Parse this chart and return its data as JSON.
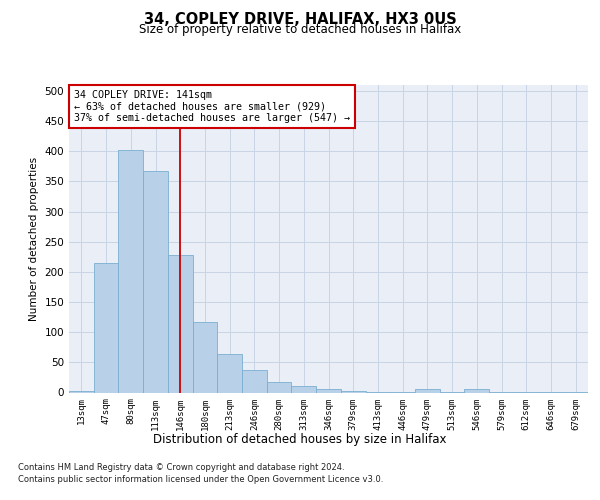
{
  "title1": "34, COPLEY DRIVE, HALIFAX, HX3 0US",
  "title2": "Size of property relative to detached houses in Halifax",
  "xlabel": "Distribution of detached houses by size in Halifax",
  "ylabel": "Number of detached properties",
  "annotation_title": "34 COPLEY DRIVE: 141sqm",
  "annotation_line1": "← 63% of detached houses are smaller (929)",
  "annotation_line2": "37% of semi-detached houses are larger (547) →",
  "categories": [
    "13sqm",
    "47sqm",
    "80sqm",
    "113sqm",
    "146sqm",
    "180sqm",
    "213sqm",
    "246sqm",
    "280sqm",
    "313sqm",
    "346sqm",
    "379sqm",
    "413sqm",
    "446sqm",
    "479sqm",
    "513sqm",
    "546sqm",
    "579sqm",
    "612sqm",
    "646sqm",
    "679sqm"
  ],
  "values": [
    2,
    214,
    403,
    368,
    228,
    117,
    64,
    38,
    17,
    11,
    6,
    2,
    1,
    1,
    6,
    1,
    6,
    1,
    1,
    1,
    1
  ],
  "bar_color": "#b8d0e8",
  "bar_edge_color": "#7aaed0",
  "vline_color": "#cc0000",
  "vline_index": 4,
  "grid_color": "#c8d4e4",
  "background_color": "#eaeff7",
  "ylim": [
    0,
    510
  ],
  "yticks": [
    0,
    50,
    100,
    150,
    200,
    250,
    300,
    350,
    400,
    450,
    500
  ],
  "footnote1": "Contains HM Land Registry data © Crown copyright and database right 2024.",
  "footnote2": "Contains public sector information licensed under the Open Government Licence v3.0."
}
